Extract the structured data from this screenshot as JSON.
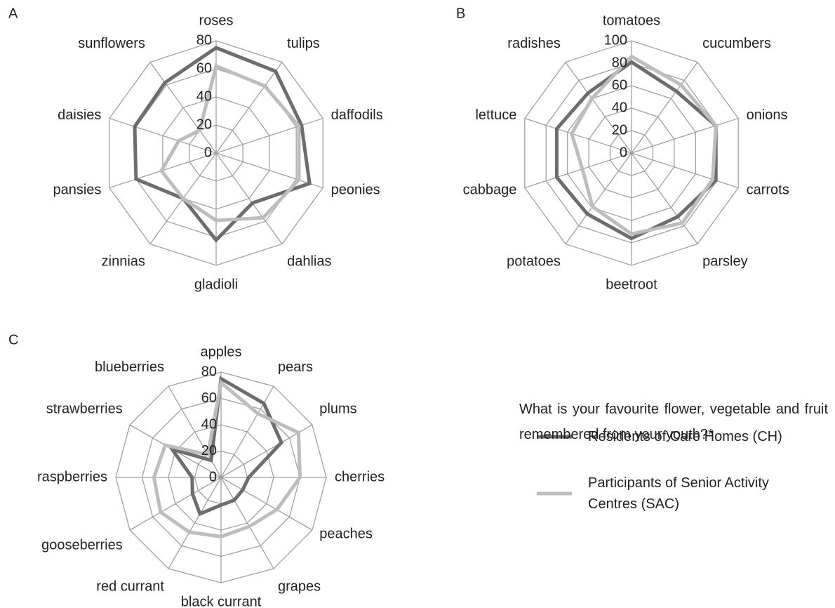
{
  "caption": "What is your favourite flower, vegetable and fruit remembered from your youth?*",
  "chart_data": [
    {
      "type": "radar",
      "title": "A",
      "categories": [
        "roses",
        "tulips",
        "daffodils",
        "peonies",
        "dahlias",
        "gladioli",
        "zinnias",
        "pansies",
        "daisies",
        "sunflowers"
      ],
      "ylim": [
        0,
        80
      ],
      "yticks": [
        0,
        20,
        40,
        60,
        80
      ],
      "grid": true,
      "series": [
        {
          "name": "Residents of Care Homes (CH)",
          "color": "#6d6d6d",
          "values": [
            75,
            72,
            64,
            70,
            44,
            62,
            40,
            60,
            61,
            62
          ]
        },
        {
          "name": "Participants of Senior Activity Centres (SAC)",
          "color": "#bdbdbd",
          "values": [
            62,
            59,
            62,
            62,
            57,
            48,
            40,
            41,
            28,
            20
          ]
        }
      ]
    },
    {
      "type": "radar",
      "title": "B",
      "categories": [
        "tomatoes",
        "cucumbers",
        "onions",
        "carrots",
        "parsley",
        "beetroot",
        "potatoes",
        "cabbage",
        "lettuce",
        "radishes"
      ],
      "ylim": [
        0,
        100
      ],
      "yticks": [
        0,
        20,
        40,
        60,
        80,
        100
      ],
      "grid": true,
      "series": [
        {
          "color": "#6d6d6d",
          "values": [
            81,
            68,
            79,
            79,
            70,
            76,
            67,
            70,
            70,
            66
          ]
        },
        {
          "color": "#bdbdbd",
          "values": [
            86,
            75,
            79,
            76,
            77,
            72,
            59,
            46,
            56,
            60
          ]
        }
      ]
    },
    {
      "type": "radar",
      "title": "C",
      "categories": [
        "apples",
        "pears",
        "plums",
        "cherries",
        "peaches",
        "grapes",
        "black currant",
        "red currant",
        "gooseberries",
        "raspberries",
        "strawberries",
        "blueberries"
      ],
      "ylim": [
        0,
        80
      ],
      "yticks": [
        0,
        20,
        40,
        60,
        80
      ],
      "grid": true,
      "series": [
        {
          "color": "#6d6d6d",
          "values": [
            75,
            65,
            53,
            21,
            19,
            20,
            21,
            32,
            25,
            22,
            43,
            15
          ]
        },
        {
          "color": "#bdbdbd",
          "values": [
            72,
            56,
            68,
            60,
            49,
            43,
            45,
            48,
            53,
            51,
            49,
            20
          ]
        }
      ]
    }
  ]
}
